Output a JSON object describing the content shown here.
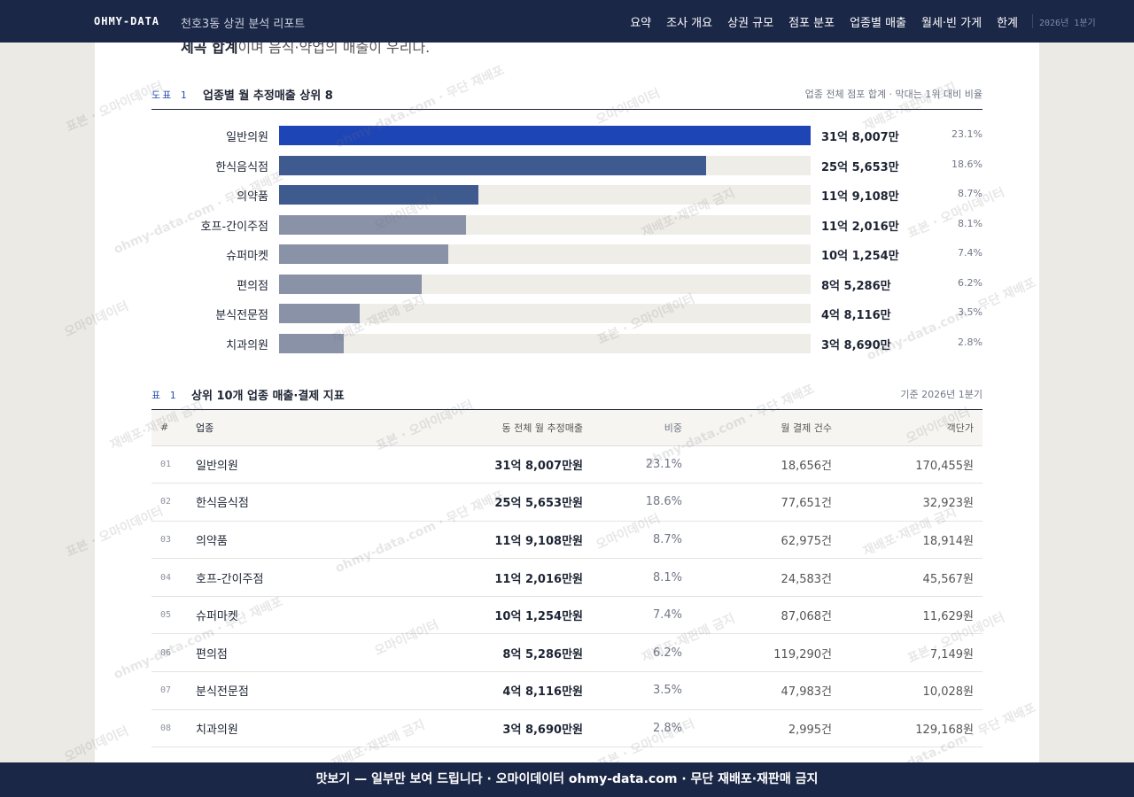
{
  "header": {
    "brand": "OHMY-DATA",
    "subtitle": "천호3동 상권 분석 리포트",
    "nav": [
      "요약",
      "조사 개요",
      "상권 규모",
      "점포 분포",
      "업종별 매출",
      "월세·빈 가게",
      "한계"
    ],
    "period": "2026년 1분기"
  },
  "intro": {
    "bold": "세곡 합계",
    "text": "이며 음식·약업의 매출이 우리다."
  },
  "figure": {
    "tag": "도표 1",
    "title": "업종별 월 추정매출 상위 8",
    "note": "업종 전체 점포 합계 · 막대는 1위 대비 비율"
  },
  "chart_data": {
    "type": "bar",
    "title": "업종별 월 추정매출 상위 8",
    "categories": [
      "일반의원",
      "한식음식점",
      "의약품",
      "호프-간이주점",
      "슈퍼마켓",
      "편의점",
      "분식전문점",
      "치과의원"
    ],
    "values": [
      318007,
      255653,
      119108,
      112016,
      101254,
      85286,
      48116,
      38690
    ],
    "value_labels": [
      "31억 8,007만",
      "25억 5,653만",
      "11억 9,108만",
      "11억 2,016만",
      "10억 1,254만",
      "8억 5,286만",
      "4억 8,116만",
      "3억 8,690만"
    ],
    "shares": [
      "23.1%",
      "18.6%",
      "8.7%",
      "8.1%",
      "7.4%",
      "6.2%",
      "3.5%",
      "2.8%"
    ],
    "unit": "만원",
    "colors": [
      "#1e45b5",
      "#3f5a8f",
      "#3f5a8f",
      "#8a92a8",
      "#8a92a8",
      "#8a92a8",
      "#8a92a8",
      "#8a92a8"
    ],
    "track_color": "#efede7"
  },
  "table": {
    "tag": "표 1",
    "title": "상위 10개 업종 매출·결제 지표",
    "note": "기준 2026년 1분기",
    "columns": [
      "#",
      "업종",
      "동 전체 월 추정매출",
      "비중",
      "월 결제 건수",
      "객단가"
    ],
    "rows": [
      {
        "no": "01",
        "name": "일반의원",
        "sales": "31억 8,007만원",
        "share": "23.1%",
        "count": "18,656건",
        "avg": "170,455원"
      },
      {
        "no": "02",
        "name": "한식음식점",
        "sales": "25억 5,653만원",
        "share": "18.6%",
        "count": "77,651건",
        "avg": "32,923원"
      },
      {
        "no": "03",
        "name": "의약품",
        "sales": "11억 9,108만원",
        "share": "8.7%",
        "count": "62,975건",
        "avg": "18,914원"
      },
      {
        "no": "04",
        "name": "호프-간이주점",
        "sales": "11억 2,016만원",
        "share": "8.1%",
        "count": "24,583건",
        "avg": "45,567원"
      },
      {
        "no": "05",
        "name": "슈퍼마켓",
        "sales": "10억 1,254만원",
        "share": "7.4%",
        "count": "87,068건",
        "avg": "11,629원"
      },
      {
        "no": "06",
        "name": "편의점",
        "sales": "8억 5,286만원",
        "share": "6.2%",
        "count": "119,290건",
        "avg": "7,149원"
      },
      {
        "no": "07",
        "name": "분식전문점",
        "sales": "4억 8,116만원",
        "share": "3.5%",
        "count": "47,983건",
        "avg": "10,028원"
      },
      {
        "no": "08",
        "name": "치과의원",
        "sales": "3억 8,690만원",
        "share": "2.8%",
        "count": "2,995건",
        "avg": "129,168원"
      }
    ]
  },
  "watermarks": [
    "표본 · 오마이데이터",
    "ohmy-data.com · 무단 재배포",
    "오마이데이터",
    "재배포·재판매 금지"
  ],
  "footer": {
    "text": "맛보기 — 일부만 보여 드립니다 · 오마이데이터 ohmy-data.com · 무단 재배포·재판매 금지"
  }
}
